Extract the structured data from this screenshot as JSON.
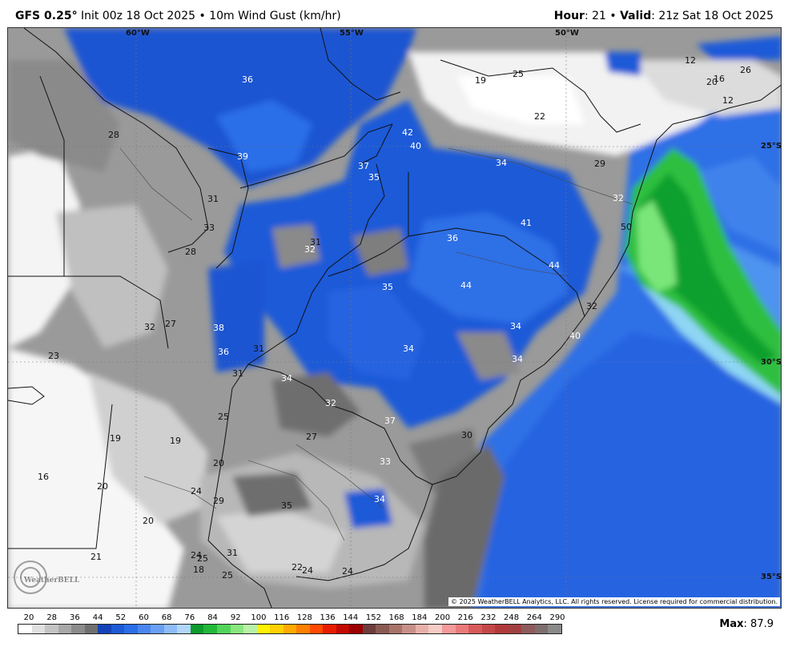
{
  "header": {
    "model": "GFS 0.25",
    "degree": "°",
    "init": "Init 00z 18 Oct 2025",
    "bullet": "•",
    "field": "10m Wind Gust (km/hr)",
    "hour_label": "Hour",
    "hour_value": ": 21",
    "valid_label": "Valid",
    "valid_value": ": 21z Sat 18 Oct 2025"
  },
  "map": {
    "lon_labels": [
      "60°W",
      "55°W",
      "50°W"
    ],
    "lat_labels": [
      "25°S",
      "30°S",
      "35°S"
    ],
    "values": [
      "36",
      "28",
      "39",
      "31",
      "33",
      "28",
      "31",
      "32",
      "32",
      "27",
      "38",
      "36",
      "31",
      "31",
      "23",
      "34",
      "25",
      "27",
      "32",
      "37",
      "35",
      "42",
      "40",
      "19",
      "25",
      "22",
      "12",
      "20",
      "16",
      "26",
      "34",
      "29",
      "32",
      "41",
      "36",
      "35",
      "44",
      "44",
      "50",
      "32",
      "34",
      "34",
      "40",
      "34",
      "37",
      "30",
      "33",
      "19",
      "19",
      "20",
      "16",
      "20",
      "24",
      "29",
      "35",
      "34",
      "20",
      "21",
      "24",
      "25",
      "18",
      "25",
      "31",
      "22",
      "24",
      "24",
      "12"
    ],
    "copyright": "© 2025 WeatherBELL Analytics, LLC. All rights reserved. License required for commercial distribution.",
    "watermark": "WeatherBELL"
  },
  "legend": {
    "ticks": [
      "20",
      "28",
      "36",
      "44",
      "52",
      "60",
      "68",
      "76",
      "84",
      "92",
      "100",
      "116",
      "128",
      "136",
      "144",
      "152",
      "168",
      "184",
      "200",
      "216",
      "232",
      "248",
      "264",
      "290"
    ],
    "colors": [
      "#ffffff",
      "#e0e0e0",
      "#c4c4c4",
      "#a8a8a8",
      "#8c8c8c",
      "#707070",
      "#1444b8",
      "#1e5ad6",
      "#2b6ee8",
      "#4a86f0",
      "#6aa0f4",
      "#8ebcf6",
      "#b2d6fa",
      "#0e9b2c",
      "#22b83a",
      "#52d45a",
      "#8ae67e",
      "#b8f2a6",
      "#fff200",
      "#ffd000",
      "#ffaa00",
      "#ff7f00",
      "#ff4a00",
      "#e81c00",
      "#c40a00",
      "#9c0000",
      "#6e3c3c",
      "#8a5a52",
      "#a8746a",
      "#c89088",
      "#e8b0aa",
      "#f6ccc6",
      "#f49a9a",
      "#ea7a7a",
      "#d85a5a",
      "#c44848",
      "#b03a3a",
      "#a04040",
      "#8e5a5a",
      "#7e6e6e",
      "#8a8a8a"
    ],
    "max_label": "Max",
    "max_value": ": 87.9"
  }
}
